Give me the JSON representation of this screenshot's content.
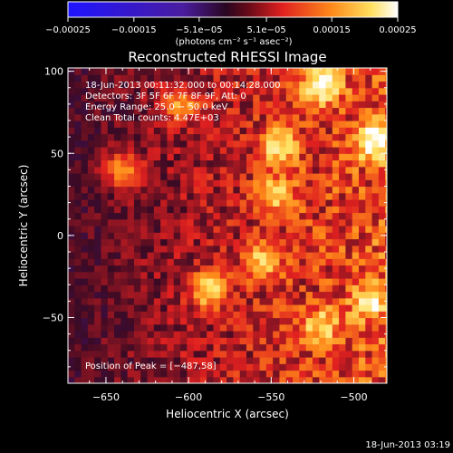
{
  "chart_data": {
    "type": "heatmap",
    "title": "Reconstructed RHESSI Image",
    "xlabel": "Heliocentric X (arcsec)",
    "ylabel": "Heliocentric Y (arcsec)",
    "xlim": [
      -673,
      -480
    ],
    "ylim": [
      -90,
      102
    ],
    "x_ticks": [
      -650,
      -600,
      -550,
      -500
    ],
    "x_tick_labels": [
      "−650",
      "−600",
      "−550",
      "−500"
    ],
    "y_ticks": [
      100,
      50,
      0,
      -50
    ],
    "y_tick_labels": [
      "100",
      "50",
      "0",
      "−50"
    ],
    "colorbar": {
      "range": [
        -0.00025,
        0.00025
      ],
      "ticks": [
        -0.00025,
        -0.00015,
        -5.1e-05,
        5.1e-05,
        0.00015,
        0.00025
      ],
      "tick_labels": [
        "−0.00025",
        "−0.00015",
        "−5.1e−05",
        "5.1e−05",
        "0.00015",
        "0.00025"
      ],
      "units": "(photons cm⁻² s⁻¹ asec⁻²)",
      "colors": [
        "#1e14ff",
        "#4a1c9e",
        "#3a0a24",
        "#e02020",
        "#ff8a1a",
        "#ffe060",
        "#ffffff"
      ]
    },
    "annotations": [
      "18-Jun-2013 00:11:32.000 to 00:14:28.000",
      "Detectors: 3F 5F 6F 7F 8F 9F, Att: 0",
      "Energy Range: 25.0 − 50.0 keV",
      "Clean     Total counts: 4.47E+03"
    ],
    "peak_label": "Position of Peak = [−487,58]",
    "bright_sources": [
      {
        "x": -487,
        "y": 58,
        "v": 0.00025
      },
      {
        "x": -520,
        "y": 92,
        "v": 0.00022
      },
      {
        "x": -545,
        "y": 55,
        "v": 0.0002
      },
      {
        "x": -548,
        "y": 25,
        "v": 0.00018
      },
      {
        "x": -588,
        "y": -33,
        "v": 0.0002
      },
      {
        "x": -555,
        "y": -15,
        "v": 0.00017
      },
      {
        "x": -520,
        "y": -55,
        "v": 0.00016
      },
      {
        "x": -490,
        "y": -40,
        "v": 0.00017
      },
      {
        "x": -640,
        "y": 40,
        "v": 0.00015
      },
      {
        "x": -605,
        "y": 80,
        "v": 0.00014
      }
    ]
  },
  "footer": {
    "timestamp": "18-Jun-2013 03:19"
  }
}
